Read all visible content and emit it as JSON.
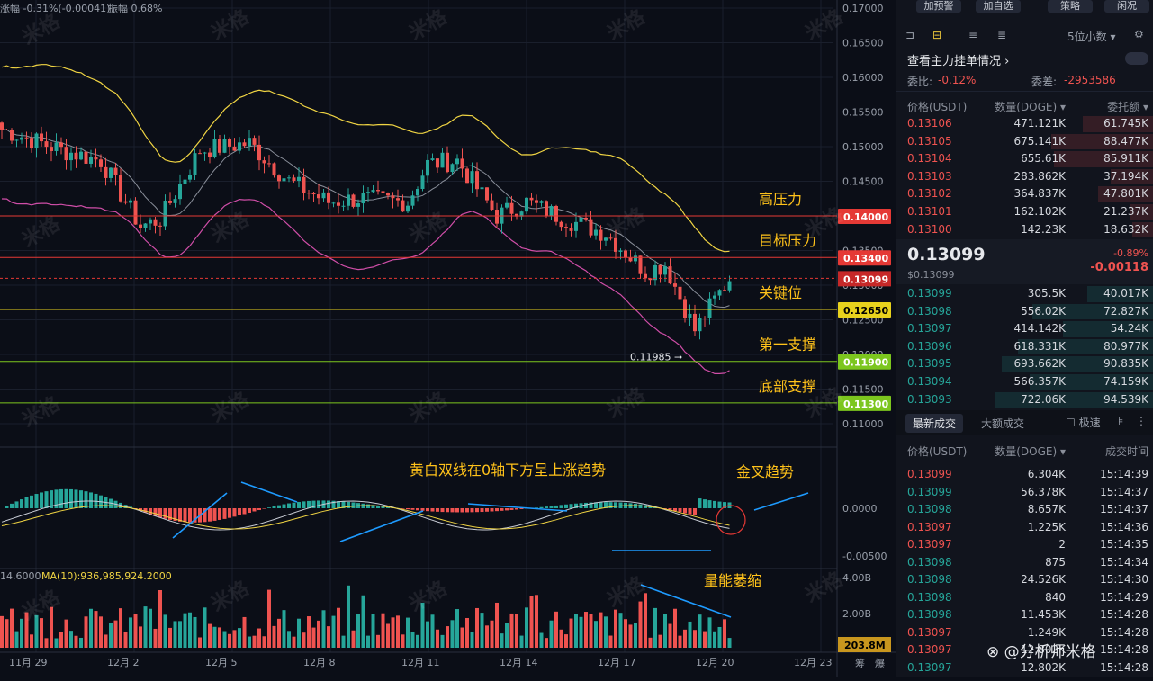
{
  "header": {
    "change_label": "涨幅",
    "change_value": "-0.31%(-0.00041)",
    "amp_label": "振幅",
    "amp_value": "0.68%"
  },
  "watermark": "米格",
  "footer_brand": "分析师米格",
  "colors": {
    "up": "#26a69a",
    "down": "#ef5350",
    "bg": "#0b0e17",
    "ma_yellow": "#f0d443",
    "ma_gray": "#8a8f9a",
    "band_pink": "#d04ea8",
    "annotation": "#ffc21a",
    "arrow": "#1e9bff"
  },
  "chart_data": {
    "type": "candlestick",
    "y_axis_ticks": [
      "0.17000",
      "0.16500",
      "0.16000",
      "0.15500",
      "0.15000",
      "0.14500",
      "0.14000",
      "0.13500",
      "0.13000",
      "0.12500",
      "0.12000",
      "0.11500",
      "0.11000"
    ],
    "x_axis_ticks": [
      "11月 29",
      "12月 2",
      "12月 5",
      "12月 8",
      "12月 11",
      "12月 14",
      "12月 17",
      "12月 20",
      "12月 23"
    ],
    "x_axis_extra": [
      "筹",
      "爆"
    ],
    "price_levels": [
      {
        "label": "高压力",
        "value": "0.14000",
        "color": "#e53935"
      },
      {
        "label": "目标压力",
        "value": "0.13400",
        "color": "#e53935"
      },
      {
        "label": "关键位",
        "value": "0.12650",
        "color": "#e8d21d"
      },
      {
        "label": "第一支撑",
        "value": "0.11900",
        "color": "#7cc61e"
      },
      {
        "label": "底部支撑",
        "value": "0.11300",
        "color": "#7cc61e"
      }
    ],
    "current_price": "0.13099",
    "low_marker": "0.11985",
    "macd": {
      "ticks": [
        "0.0000",
        "-0.00500"
      ],
      "annotation_top": "黄白双线在0轴下方呈上涨趋势",
      "annotation_right": "金叉趋势"
    },
    "volume": {
      "ma_label": "MA(10):936,985,924.2000",
      "left_value": "14.6000",
      "ticks": [
        "4.00B",
        "2.00B"
      ],
      "current": "203.8M",
      "annotation": "量能萎缩"
    }
  },
  "sidebar": {
    "buttons": [
      "加预警",
      "加自选",
      "策略",
      "闲况"
    ],
    "precision": "5位小数",
    "order_book_title": "查看主力挂单情况",
    "ratio_label": "委比:",
    "ratio_value": "-0.12%",
    "diff_label": "委差:",
    "diff_value": "-2953586",
    "ob_headers": [
      "价格(USDT)",
      "数量(DOGE)",
      "委托额"
    ],
    "asks": [
      [
        "0.13106",
        "471.121K",
        "61.745K"
      ],
      [
        "0.13105",
        "675.141K",
        "88.477K"
      ],
      [
        "0.13104",
        "655.61K",
        "85.911K"
      ],
      [
        "0.13103",
        "283.862K",
        "37.194K"
      ],
      [
        "0.13102",
        "364.837K",
        "47.801K"
      ],
      [
        "0.13101",
        "162.102K",
        "21.237K"
      ],
      [
        "0.13100",
        "142.23K",
        "18.632K"
      ]
    ],
    "mid_price": "0.13099",
    "mid_usd": "$0.13099",
    "mid_change_pct": "-0.89%",
    "mid_change": "-0.00118",
    "bids": [
      [
        "0.13099",
        "305.5K",
        "40.017K"
      ],
      [
        "0.13098",
        "556.02K",
        "72.827K"
      ],
      [
        "0.13097",
        "414.142K",
        "54.24K"
      ],
      [
        "0.13096",
        "618.331K",
        "80.977K"
      ],
      [
        "0.13095",
        "693.662K",
        "90.835K"
      ],
      [
        "0.13094",
        "566.357K",
        "74.159K"
      ],
      [
        "0.13093",
        "722.06K",
        "94.539K"
      ]
    ],
    "trades_tab": "最新成交",
    "big_trades_tab": "大额成交",
    "speed_label": "极速",
    "trade_headers": [
      "价格(USDT)",
      "数量(DOGE)",
      "成交时间"
    ],
    "trades": [
      [
        "0.13099",
        "6.304K",
        "15:14:39",
        "down"
      ],
      [
        "0.13099",
        "56.378K",
        "15:14:37",
        "up"
      ],
      [
        "0.13098",
        "8.657K",
        "15:14:37",
        "up"
      ],
      [
        "0.13097",
        "1.225K",
        "15:14:36",
        "down"
      ],
      [
        "0.13097",
        "2",
        "15:14:35",
        "down"
      ],
      [
        "0.13098",
        "875",
        "15:14:34",
        "up"
      ],
      [
        "0.13098",
        "24.526K",
        "15:14:30",
        "up"
      ],
      [
        "0.13098",
        "840",
        "15:14:29",
        "up"
      ],
      [
        "0.13098",
        "11.453K",
        "15:14:28",
        "up"
      ],
      [
        "0.13097",
        "1.249K",
        "15:14:28",
        "down"
      ],
      [
        "0.13097",
        "12.802K",
        "15:14:28",
        "down"
      ],
      [
        "0.13097",
        "12.802K",
        "15:14:28",
        "up"
      ]
    ]
  }
}
